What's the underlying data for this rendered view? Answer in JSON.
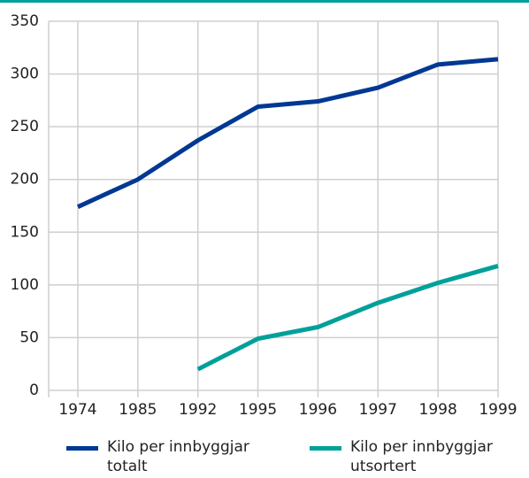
{
  "chart_data": {
    "type": "line",
    "categories": [
      "1974",
      "1985",
      "1992",
      "1995",
      "1996",
      "1997",
      "1998",
      "1999"
    ],
    "series": [
      {
        "name": "Kilo per innbyggjar totalt",
        "color": "#003893",
        "values": [
          174,
          200,
          237,
          269,
          274,
          287,
          309,
          314
        ]
      },
      {
        "name": "Kilo per innbyggjar utsortert",
        "color": "#00a09a",
        "values": [
          null,
          null,
          20,
          49,
          60,
          83,
          102,
          118
        ]
      }
    ],
    "ylim": [
      0,
      350
    ],
    "yticks": [
      0,
      50,
      100,
      150,
      200,
      250,
      300,
      350
    ],
    "grid": true
  }
}
